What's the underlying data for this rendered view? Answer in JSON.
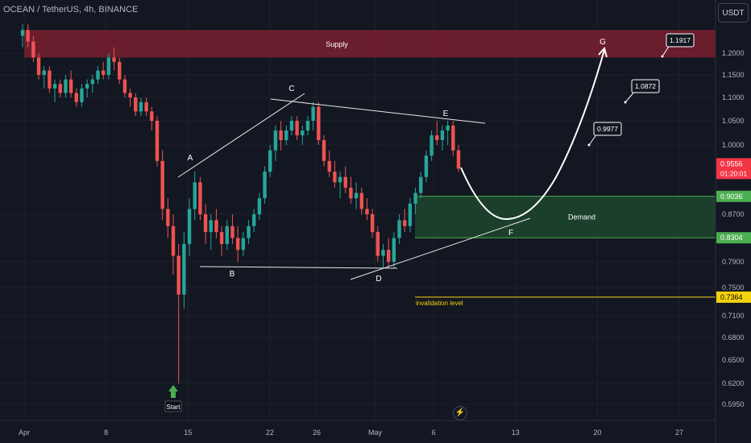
{
  "header": {
    "title": "OCEAN / TetherUS, 4h, BINANCE"
  },
  "price_axis_unit": "USDT",
  "flash_glyph": "⚡",
  "colors": {
    "background": "#131722",
    "up": "#26a69a",
    "down": "#ef5350",
    "supply": "#7a1f2f",
    "demand": "#1e4a2e",
    "demand_border": "#4caf50",
    "invalidation": "#f5d20f",
    "current_price_tag": "#f23645",
    "start_arrow": "#4caf50"
  },
  "chart_data": {
    "type": "candlestick",
    "symbol": "OCEAN / TetherUS",
    "timeframe": "4h",
    "exchange": "BINANCE",
    "y_ticks": [
      "1.2000",
      "1.1500",
      "1.1000",
      "1.0500",
      "1.0000",
      "0.8700",
      "0.7900",
      "0.7500",
      "0.7100",
      "0.6800",
      "0.6500",
      "0.6200",
      "0.5950"
    ],
    "y_tick_values": [
      1.2,
      1.15,
      1.1,
      1.05,
      1.0,
      0.87,
      0.79,
      0.75,
      0.71,
      0.68,
      0.65,
      0.62,
      0.595
    ],
    "x_ticks": [
      "Apr",
      "8",
      "15",
      "22",
      "26",
      "May",
      "6",
      "13",
      "20",
      "27"
    ],
    "x_tick_days": [
      0,
      7,
      14,
      21,
      25,
      30,
      35,
      42,
      49,
      56
    ],
    "price_tags": [
      {
        "label": "0.9036",
        "value": 0.9036,
        "kind": "demand"
      },
      {
        "label": "0.8304",
        "value": 0.8304,
        "kind": "demand"
      },
      {
        "label": "0.7364",
        "value": 0.7364,
        "kind": "invalidation"
      }
    ],
    "current_price": {
      "label": "0.9556",
      "countdown": "01:20:01",
      "value": 0.9556
    },
    "zones": [
      {
        "name": "Supply",
        "from": 1.19,
        "to": 1.24,
        "start_day": 0
      },
      {
        "name": "Demand",
        "from": 0.8304,
        "to": 0.9036,
        "start_day": 32
      }
    ],
    "invalidation": {
      "label": "invalidation level",
      "value": 0.7364,
      "start_day": 32
    },
    "wave_labels": [
      {
        "label": "A",
        "day": 13.6,
        "value": 0.95
      },
      {
        "label": "B",
        "day": 17.4,
        "value": 0.78
      },
      {
        "label": "C",
        "day": 22.3,
        "value": 1.115
      },
      {
        "label": "D",
        "day": 30.4,
        "value": 0.77
      },
      {
        "label": "E",
        "day": 36.2,
        "value": 1.085
      },
      {
        "label": "F",
        "day": 40.8,
        "value": 0.81
      },
      {
        "label": "G",
        "day": 48.6,
        "value": 1.23
      }
    ],
    "targets": [
      {
        "label": "0.9977",
        "value": 0.9977,
        "day": 48
      },
      {
        "label": "1.0872",
        "value": 1.0872,
        "day": 51.2
      },
      {
        "label": "1.1917",
        "value": 1.1917,
        "day": 54.3
      }
    ],
    "start_marker": {
      "label": "Start",
      "day": 12.6,
      "value": 0.62
    },
    "candles": [
      [
        1.23,
        1.26,
        1.21,
        1.24
      ],
      [
        1.24,
        1.25,
        1.21,
        1.22
      ],
      [
        1.22,
        1.23,
        1.18,
        1.19
      ],
      [
        1.19,
        1.2,
        1.14,
        1.15
      ],
      [
        1.15,
        1.17,
        1.12,
        1.16
      ],
      [
        1.16,
        1.17,
        1.11,
        1.12
      ],
      [
        1.12,
        1.14,
        1.09,
        1.13
      ],
      [
        1.13,
        1.14,
        1.1,
        1.11
      ],
      [
        1.11,
        1.15,
        1.1,
        1.14
      ],
      [
        1.14,
        1.16,
        1.1,
        1.11
      ],
      [
        1.11,
        1.12,
        1.08,
        1.09
      ],
      [
        1.09,
        1.13,
        1.08,
        1.12
      ],
      [
        1.12,
        1.14,
        1.1,
        1.13
      ],
      [
        1.13,
        1.15,
        1.11,
        1.14
      ],
      [
        1.14,
        1.17,
        1.13,
        1.16
      ],
      [
        1.16,
        1.18,
        1.14,
        1.15
      ],
      [
        1.15,
        1.2,
        1.14,
        1.19
      ],
      [
        1.19,
        1.21,
        1.16,
        1.18
      ],
      [
        1.18,
        1.19,
        1.13,
        1.14
      ],
      [
        1.14,
        1.15,
        1.1,
        1.11
      ],
      [
        1.11,
        1.12,
        1.08,
        1.1
      ],
      [
        1.1,
        1.11,
        1.06,
        1.07
      ],
      [
        1.07,
        1.1,
        1.06,
        1.09
      ],
      [
        1.09,
        1.1,
        1.06,
        1.07
      ],
      [
        1.07,
        1.08,
        1.03,
        1.05
      ],
      [
        1.05,
        1.06,
        0.96,
        0.97
      ],
      [
        0.97,
        0.99,
        0.86,
        0.88
      ],
      [
        0.88,
        0.9,
        0.83,
        0.85
      ],
      [
        0.85,
        0.87,
        0.77,
        0.8
      ],
      [
        0.8,
        0.82,
        0.62,
        0.74
      ],
      [
        0.74,
        0.84,
        0.72,
        0.82
      ],
      [
        0.82,
        0.9,
        0.8,
        0.88
      ],
      [
        0.88,
        0.95,
        0.86,
        0.93
      ],
      [
        0.93,
        0.94,
        0.86,
        0.87
      ],
      [
        0.87,
        0.89,
        0.82,
        0.84
      ],
      [
        0.84,
        0.87,
        0.81,
        0.86
      ],
      [
        0.86,
        0.88,
        0.83,
        0.84
      ],
      [
        0.84,
        0.85,
        0.8,
        0.82
      ],
      [
        0.82,
        0.86,
        0.81,
        0.85
      ],
      [
        0.85,
        0.87,
        0.82,
        0.83
      ],
      [
        0.83,
        0.85,
        0.79,
        0.81
      ],
      [
        0.81,
        0.84,
        0.8,
        0.83
      ],
      [
        0.83,
        0.86,
        0.82,
        0.85
      ],
      [
        0.85,
        0.88,
        0.84,
        0.87
      ],
      [
        0.87,
        0.91,
        0.86,
        0.9
      ],
      [
        0.9,
        0.96,
        0.89,
        0.95
      ],
      [
        0.95,
        1.0,
        0.94,
        0.99
      ],
      [
        0.99,
        1.04,
        0.97,
        1.03
      ],
      [
        1.03,
        1.05,
        0.99,
        1.01
      ],
      [
        1.01,
        1.04,
        1.0,
        1.03
      ],
      [
        1.03,
        1.06,
        1.02,
        1.05
      ],
      [
        1.05,
        1.06,
        1.01,
        1.02
      ],
      [
        1.02,
        1.04,
        1.0,
        1.03
      ],
      [
        1.03,
        1.06,
        1.02,
        1.05
      ],
      [
        1.05,
        1.09,
        1.03,
        1.08
      ],
      [
        1.08,
        1.09,
        1.0,
        1.01
      ],
      [
        1.01,
        1.02,
        0.96,
        0.97
      ],
      [
        0.97,
        0.99,
        0.94,
        0.95
      ],
      [
        0.95,
        0.97,
        0.92,
        0.93
      ],
      [
        0.93,
        0.95,
        0.9,
        0.94
      ],
      [
        0.94,
        0.96,
        0.91,
        0.92
      ],
      [
        0.92,
        0.94,
        0.89,
        0.9
      ],
      [
        0.9,
        0.93,
        0.88,
        0.91
      ],
      [
        0.91,
        0.92,
        0.87,
        0.88
      ],
      [
        0.88,
        0.9,
        0.86,
        0.87
      ],
      [
        0.87,
        0.88,
        0.83,
        0.84
      ],
      [
        0.84,
        0.85,
        0.79,
        0.8
      ],
      [
        0.8,
        0.82,
        0.78,
        0.81
      ],
      [
        0.81,
        0.83,
        0.78,
        0.79
      ],
      [
        0.79,
        0.84,
        0.78,
        0.83
      ],
      [
        0.83,
        0.87,
        0.82,
        0.86
      ],
      [
        0.86,
        0.88,
        0.84,
        0.85
      ],
      [
        0.85,
        0.9,
        0.84,
        0.89
      ],
      [
        0.89,
        0.92,
        0.87,
        0.91
      ],
      [
        0.91,
        0.95,
        0.9,
        0.94
      ],
      [
        0.94,
        0.99,
        0.93,
        0.98
      ],
      [
        0.98,
        1.03,
        0.97,
        1.02
      ],
      [
        1.02,
        1.05,
        1.0,
        1.01
      ],
      [
        1.01,
        1.04,
        0.99,
        1.03
      ],
      [
        1.03,
        1.05,
        1.0,
        1.04
      ],
      [
        1.04,
        1.05,
        0.98,
        0.99
      ],
      [
        0.99,
        1.0,
        0.95,
        0.9556
      ]
    ]
  }
}
